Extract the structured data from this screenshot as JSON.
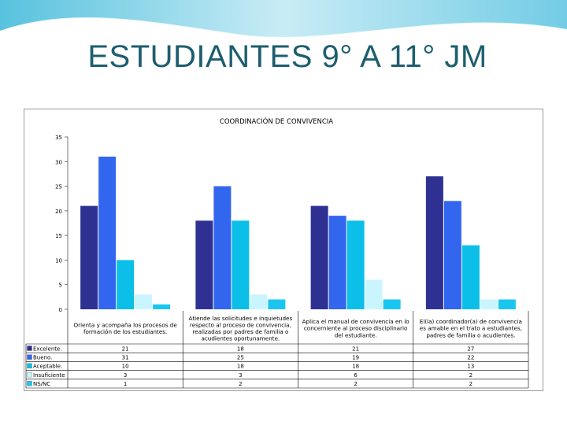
{
  "slide": {
    "title": "ESTUDIANTES 9° A  11° JM"
  },
  "chart_data": {
    "type": "bar",
    "title": "COORDINACIÓN DE CONVIVENCIA",
    "ylim": [
      0,
      35
    ],
    "yticks": [
      0,
      5,
      10,
      15,
      20,
      25,
      30,
      35
    ],
    "grid": false,
    "categories": [
      "Orienta y acompaña los procesos de formación de los estudiantes.",
      "Atiende las solicitudes e inquietudes respecto al proceso de convivencia, realizadas por padres de familia o acudientes oportunamente.",
      "Aplica el manual de convivencia en lo concerniente al proceso disciplinario del estudiante.",
      "El(la) coordinador(a) de convivencia es amable en el trato a estudiantes, padres de familia o acudientes."
    ],
    "series": [
      {
        "name": "Excelente.",
        "color": "#2e3192",
        "values": [
          21,
          18,
          21,
          27
        ]
      },
      {
        "name": "Bueno.",
        "color": "#3366ee",
        "values": [
          31,
          25,
          19,
          22
        ]
      },
      {
        "name": "Aceptable.",
        "color": "#0bbfe9",
        "values": [
          10,
          18,
          18,
          13
        ]
      },
      {
        "name": "Insuficiente",
        "color": "#c9f5ff",
        "values": [
          3,
          3,
          6,
          2
        ]
      },
      {
        "name": "NS/NC",
        "color": "#1ac6f0",
        "values": [
          1,
          2,
          2,
          2
        ]
      }
    ]
  }
}
